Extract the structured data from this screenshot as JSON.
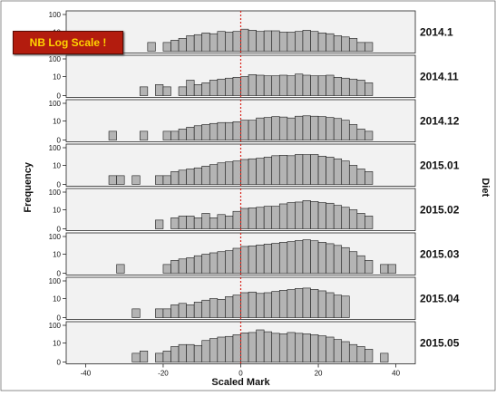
{
  "badge_text": "NB Log Scale !",
  "chart_data": {
    "type": "bar",
    "xlabel": "Scaled Mark",
    "ylabel": "Frequency",
    "right_label": "Diet",
    "xlim": [
      -45,
      45
    ],
    "x_ticks": [
      -40,
      -20,
      0,
      20,
      40
    ],
    "y_scale": "log",
    "y_ticks": [
      0,
      10,
      100
    ],
    "reference_line_x": 0,
    "bin_width": 2,
    "bin_starts": [
      -40,
      -38,
      -36,
      -34,
      -32,
      -30,
      -28,
      -26,
      -24,
      -22,
      -20,
      -18,
      -16,
      -14,
      -12,
      -10,
      -8,
      -6,
      -4,
      -2,
      0,
      2,
      4,
      6,
      8,
      10,
      12,
      14,
      16,
      18,
      20,
      22,
      24,
      26,
      28,
      30,
      32,
      34,
      36,
      38
    ],
    "panels": [
      {
        "name": "2014.1",
        "counts": [
          0,
          0,
          0,
          0,
          0,
          0,
          0,
          0,
          2,
          0,
          2,
          3,
          4,
          6,
          7,
          9,
          8,
          11,
          10,
          11,
          15,
          13,
          11,
          12,
          12,
          10,
          10,
          11,
          13,
          11,
          9,
          8,
          6,
          5,
          4,
          2,
          2,
          0,
          0,
          0
        ]
      },
      {
        "name": "2014.11",
        "counts": [
          0,
          0,
          0,
          0,
          0,
          0,
          0,
          2,
          0,
          3,
          2,
          0,
          2,
          6,
          3,
          4,
          6,
          7,
          8,
          9,
          10,
          13,
          12,
          11,
          11,
          12,
          11,
          14,
          12,
          11,
          11,
          12,
          9,
          8,
          7,
          6,
          4,
          0,
          0,
          0
        ]
      },
      {
        "name": "2014.12",
        "counts": [
          0,
          0,
          0,
          2,
          0,
          0,
          0,
          2,
          0,
          0,
          2,
          2,
          3,
          4,
          5,
          6,
          7,
          8,
          8,
          9,
          11,
          11,
          15,
          16,
          18,
          17,
          15,
          19,
          20,
          19,
          18,
          16,
          14,
          11,
          6,
          3,
          2,
          0,
          0,
          0
        ]
      },
      {
        "name": "2015.01",
        "counts": [
          0,
          0,
          0,
          2,
          2,
          0,
          2,
          0,
          0,
          2,
          2,
          4,
          5,
          6,
          7,
          9,
          11,
          14,
          16,
          18,
          22,
          24,
          26,
          30,
          36,
          38,
          36,
          42,
          41,
          42,
          34,
          30,
          24,
          18,
          10,
          6,
          4,
          0,
          0,
          0
        ]
      },
      {
        "name": "2015.02",
        "counts": [
          0,
          0,
          0,
          0,
          0,
          0,
          0,
          0,
          0,
          2,
          0,
          3,
          4,
          4,
          3,
          6,
          3,
          5,
          4,
          8,
          12,
          13,
          14,
          16,
          16,
          22,
          26,
          28,
          34,
          30,
          26,
          24,
          18,
          14,
          10,
          6,
          4,
          0,
          0,
          0
        ]
      },
      {
        "name": "2015.03",
        "counts": [
          0,
          0,
          0,
          0,
          2,
          0,
          0,
          0,
          0,
          0,
          2,
          4,
          5,
          6,
          8,
          10,
          12,
          14,
          16,
          22,
          28,
          30,
          34,
          38,
          42,
          48,
          52,
          60,
          66,
          58,
          48,
          40,
          32,
          24,
          14,
          8,
          4,
          0,
          2,
          2
        ]
      },
      {
        "name": "2015.04",
        "counts": [
          0,
          0,
          0,
          0,
          0,
          0,
          2,
          0,
          0,
          2,
          2,
          4,
          5,
          4,
          6,
          8,
          10,
          9,
          13,
          16,
          22,
          24,
          20,
          22,
          26,
          30,
          33,
          38,
          40,
          34,
          28,
          22,
          16,
          14,
          0,
          0,
          0,
          0,
          0,
          0
        ]
      },
      {
        "name": "2015.05",
        "counts": [
          0,
          0,
          0,
          0,
          0,
          0,
          2,
          3,
          0,
          2,
          3,
          6,
          8,
          8,
          7,
          14,
          18,
          22,
          24,
          30,
          38,
          40,
          56,
          44,
          36,
          34,
          40,
          36,
          34,
          30,
          26,
          22,
          16,
          12,
          8,
          6,
          4,
          0,
          2,
          0
        ]
      }
    ]
  }
}
